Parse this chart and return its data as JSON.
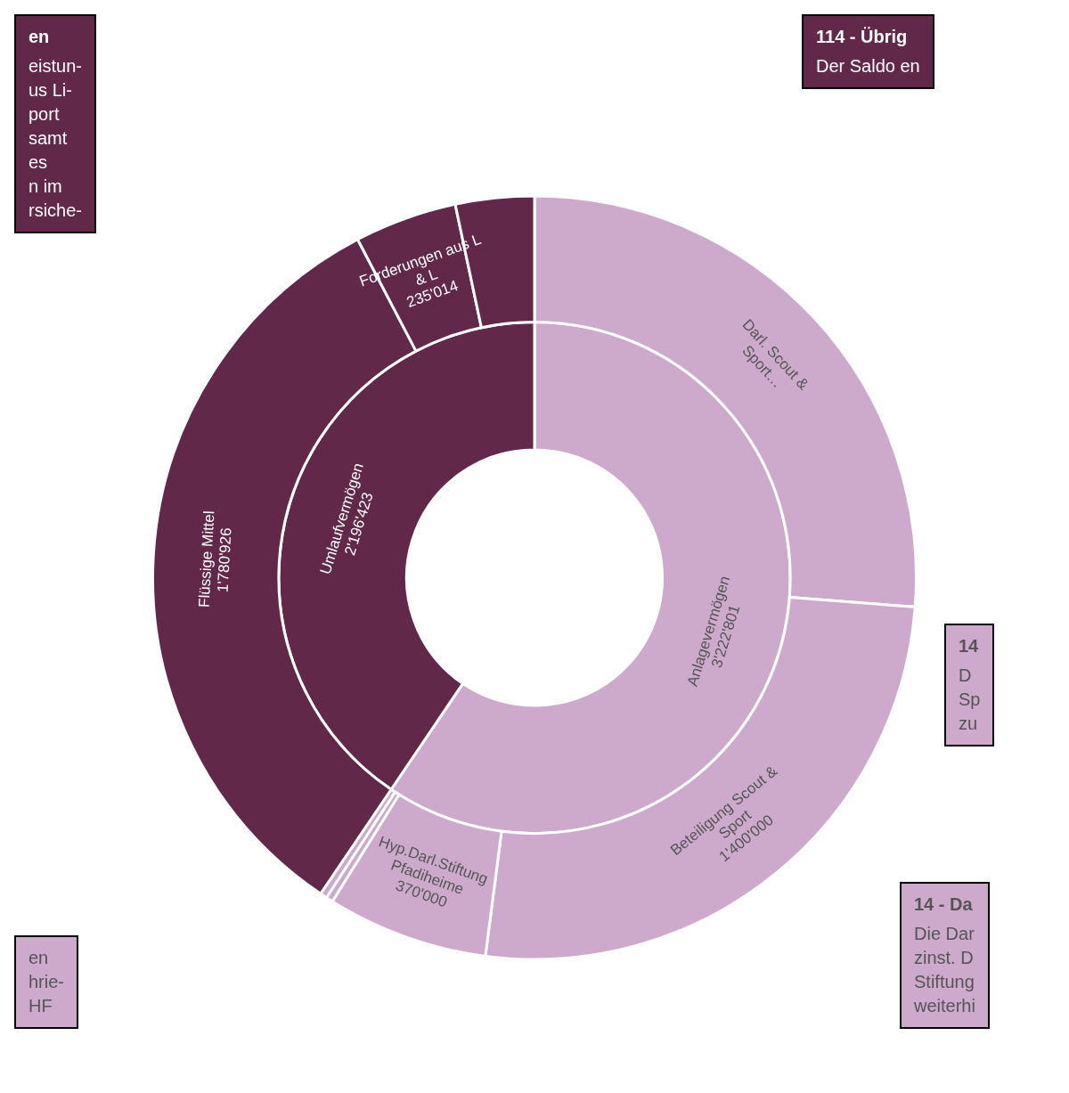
{
  "chart_data": [
    {
      "type": "donut",
      "categories": [
        "Anlagevermögen",
        "Umlaufvermögen"
      ],
      "values": [
        3222801,
        2196423
      ],
      "colors": [
        "#cdaacb",
        "#62284a"
      ],
      "value_labels": [
        "3'222'801",
        "2'196'423"
      ]
    },
    {
      "type": "donut",
      "categories": [
        "Darl. Scout & Sport…",
        "Beteiligung Scout & Sport",
        "Hyp.Darl.Stiftung Pfadiheime",
        null,
        null,
        "Flüssige Mittel",
        "Forderungen aus L & L",
        null
      ],
      "values": [
        1421000,
        1400000,
        370000,
        16000,
        15801,
        1780926,
        235014,
        180483
      ],
      "colors": [
        "#cdaacb",
        "#cdaacb",
        "#cdaacb",
        "#cdaacb",
        "#cdaacb",
        "#62284a",
        "#62284a",
        "#62284a"
      ],
      "value_labels": [
        null,
        "1'400'000",
        "370'000",
        null,
        null,
        "1'780'926",
        "235'014",
        null
      ],
      "annotations": [
        "en\neistun-\nus Li-\nport\nsamt\nes\nn im\nrsiche-",
        "114 - Übrig\nDer Saldo en",
        "14\nD\nSp\nzu",
        "14 - Da\nDie Dar\nzinst. D\nStiftung\nweiterhi",
        "en\nhrie-\nHF"
      ]
    }
  ]
}
